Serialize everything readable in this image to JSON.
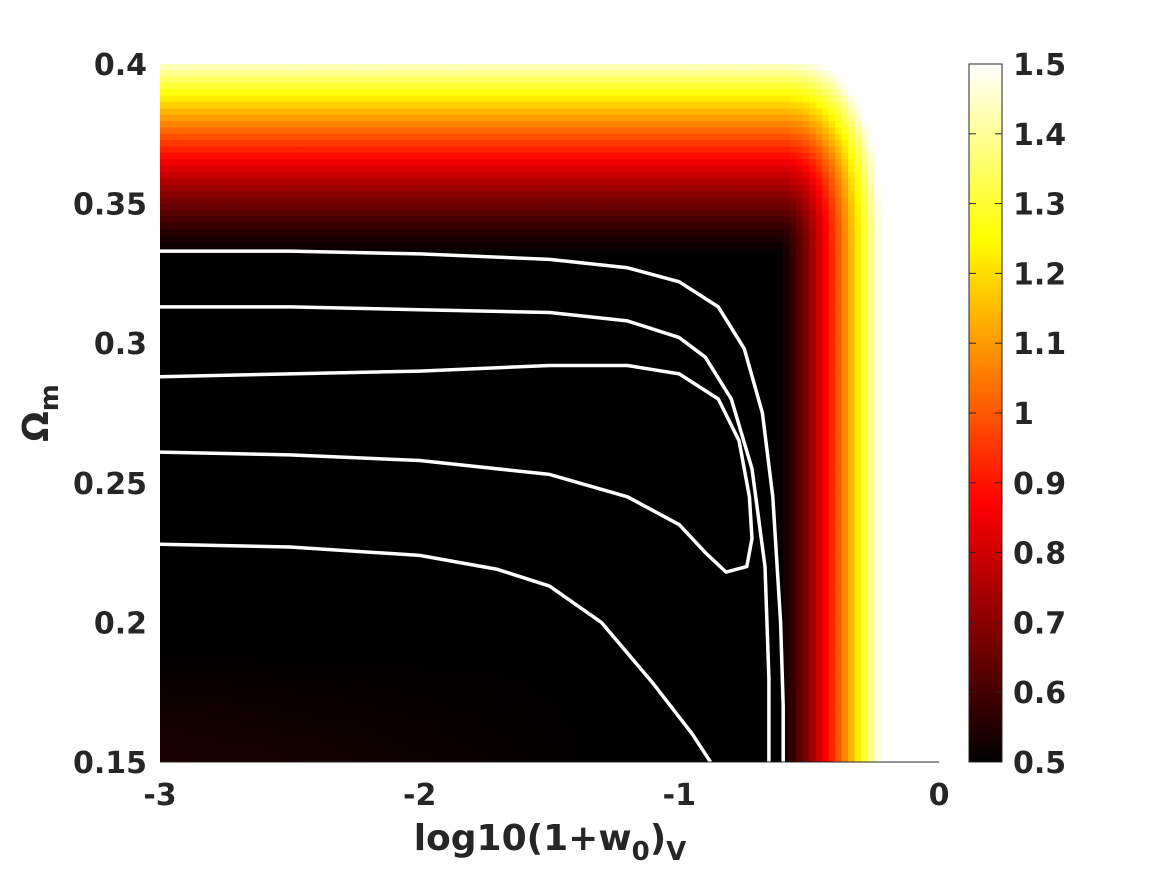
{
  "chart_data": {
    "type": "heatmap",
    "xlabel": {
      "main": "log10(1+w",
      "sub1": "0",
      "mid": ")",
      "sub2": "V"
    },
    "ylabel": {
      "main": "Ω",
      "sub": "m"
    },
    "xlim": [
      -3,
      0
    ],
    "ylim": [
      0.15,
      0.4
    ],
    "xticks": [
      "-3",
      "-2",
      "-1",
      "0"
    ],
    "yticks": [
      "0.15",
      "0.2",
      "0.25",
      "0.3",
      "0.35",
      "0.4"
    ],
    "colorbar": {
      "range": [
        0.5,
        1.5
      ],
      "ticks": [
        "0.5",
        "0.6",
        "0.7",
        "0.8",
        "0.9",
        "1",
        "1.1",
        "1.2",
        "1.3",
        "1.4",
        "1.5"
      ],
      "colormap": "hot"
    },
    "field_notes": "Value about 0.5 (black) over most of the plane; rises through red and yellow to white toward large Omega_m and toward log10(1+w0) near 0; blank for log10(1+w0) > -0.2 at low Omega_m.",
    "contours": [
      {
        "points": [
          [
            -3,
            0.333
          ],
          [
            -2.5,
            0.333
          ],
          [
            -2,
            0.332
          ],
          [
            -1.5,
            0.33
          ],
          [
            -1.2,
            0.327
          ],
          [
            -1.0,
            0.322
          ],
          [
            -0.85,
            0.313
          ],
          [
            -0.75,
            0.298
          ],
          [
            -0.68,
            0.275
          ],
          [
            -0.64,
            0.245
          ],
          [
            -0.61,
            0.2
          ],
          [
            -0.6,
            0.17
          ],
          [
            -0.6,
            0.15
          ]
        ]
      },
      {
        "points": [
          [
            -3,
            0.313
          ],
          [
            -2.5,
            0.313
          ],
          [
            -2,
            0.312
          ],
          [
            -1.5,
            0.311
          ],
          [
            -1.2,
            0.308
          ],
          [
            -1.0,
            0.302
          ],
          [
            -0.9,
            0.295
          ],
          [
            -0.8,
            0.28
          ],
          [
            -0.72,
            0.255
          ],
          [
            -0.67,
            0.22
          ],
          [
            -0.655,
            0.18
          ],
          [
            -0.655,
            0.15
          ]
        ]
      },
      {
        "points": [
          [
            -3,
            0.288
          ],
          [
            -2.5,
            0.289
          ],
          [
            -2,
            0.29
          ],
          [
            -1.5,
            0.292
          ],
          [
            -1.2,
            0.292
          ],
          [
            -1.0,
            0.289
          ],
          [
            -0.85,
            0.28
          ],
          [
            -0.77,
            0.265
          ],
          [
            -0.73,
            0.245
          ],
          [
            -0.72,
            0.23
          ],
          [
            -0.74,
            0.22
          ],
          [
            -0.82,
            0.218
          ],
          [
            -0.9,
            0.225
          ],
          [
            -1.0,
            0.235
          ],
          [
            -1.2,
            0.245
          ],
          [
            -1.5,
            0.253
          ],
          [
            -2,
            0.258
          ],
          [
            -2.5,
            0.26
          ],
          [
            -3,
            0.261
          ]
        ]
      },
      {
        "points": [
          [
            -3,
            0.228
          ],
          [
            -2.5,
            0.227
          ],
          [
            -2,
            0.224
          ],
          [
            -1.7,
            0.219
          ],
          [
            -1.5,
            0.213
          ],
          [
            -1.3,
            0.2
          ],
          [
            -1.1,
            0.178
          ],
          [
            -0.95,
            0.16
          ],
          [
            -0.88,
            0.15
          ]
        ]
      }
    ]
  }
}
